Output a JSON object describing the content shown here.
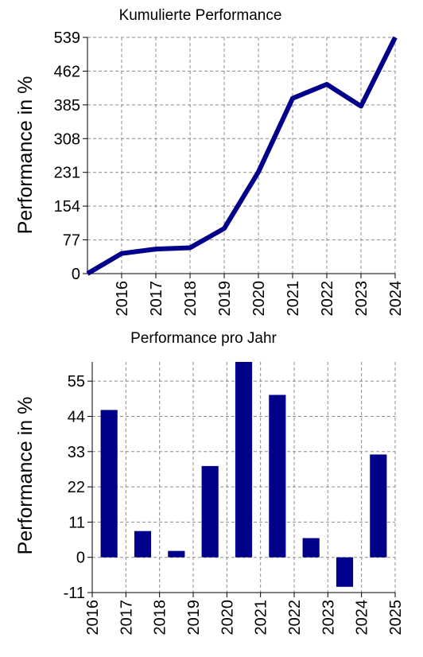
{
  "charts": [
    {
      "type": "line",
      "title": "Kumulierte Performance",
      "ylabel": "Performance in %",
      "color": "#00008b",
      "grid": true,
      "x": [
        2015,
        2016,
        2017,
        2018,
        2019,
        2020,
        2021,
        2022,
        2023,
        2024
      ],
      "y": [
        0,
        46,
        56,
        59,
        103,
        232,
        400,
        432,
        382,
        539
      ],
      "xlim": [
        2015,
        2024
      ],
      "ylim": [
        0,
        539
      ],
      "xticks": [
        2016,
        2017,
        2018,
        2019,
        2020,
        2021,
        2022,
        2023,
        2024
      ],
      "xtick_labels": [
        "2016",
        "2017",
        "2018",
        "2019",
        "2020",
        "2021",
        "2022",
        "2023",
        "2024"
      ],
      "yticks": [
        0,
        77,
        154,
        231,
        308,
        385,
        462,
        539
      ],
      "ytick_labels": [
        "0",
        "77",
        "154",
        "231",
        "308",
        "385",
        "462",
        "539"
      ]
    },
    {
      "type": "bar",
      "title": "Performance pro Jahr",
      "ylabel": "Performance in %",
      "color": "#00008b",
      "grid": true,
      "x": [
        2016.5,
        2017.5,
        2018.5,
        2019.5,
        2020.5,
        2021.5,
        2022.5,
        2023.5,
        2024.5
      ],
      "values": [
        46,
        8.2,
        2,
        28.5,
        61,
        50.7,
        6,
        -9.2,
        32.1
      ],
      "xlim": [
        2016,
        2025
      ],
      "ylim": [
        -11,
        61
      ],
      "xticks": [
        2016,
        2017,
        2018,
        2019,
        2020,
        2021,
        2022,
        2023,
        2024,
        2025
      ],
      "xtick_labels": [
        "2016",
        "2017",
        "2018",
        "2019",
        "2020",
        "2021",
        "2022",
        "2023",
        "2024",
        "2025"
      ],
      "yticks": [
        -11,
        0,
        11,
        22,
        33,
        44,
        55
      ],
      "ytick_labels": [
        "-11",
        "0",
        "11",
        "22",
        "33",
        "44",
        "55"
      ]
    }
  ]
}
